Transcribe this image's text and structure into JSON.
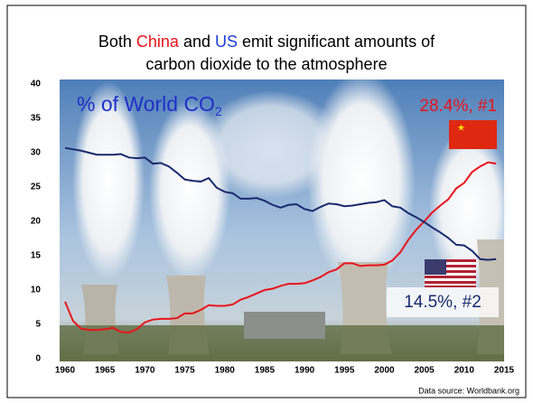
{
  "chart_data": {
    "type": "line",
    "title_lines": [
      [
        {
          "text": "Both ",
          "color": "#000000"
        },
        {
          "text": "China",
          "color": "#e8141b"
        },
        {
          "text": " and ",
          "color": "#000000"
        },
        {
          "text": "US",
          "color": "#1f3fd6"
        },
        {
          "text": " emit significant amounts of",
          "color": "#000000"
        }
      ],
      [
        {
          "text": "carbon dioxide to the atmosphere",
          "color": "#000000"
        }
      ]
    ],
    "annotations": [
      {
        "text": "% of World CO",
        "sub": "2",
        "color": "#1f2fc8"
      },
      {
        "text": "28.4%, #1",
        "color": "#e8141b"
      },
      {
        "text": "14.5%, #2",
        "color": "#1a2a6e"
      }
    ],
    "source": "Data source: Worldbank.org",
    "x": [
      1960,
      1961,
      1962,
      1963,
      1964,
      1965,
      1966,
      1967,
      1968,
      1969,
      1970,
      1971,
      1972,
      1973,
      1974,
      1975,
      1976,
      1977,
      1978,
      1979,
      1980,
      1981,
      1982,
      1983,
      1984,
      1985,
      1986,
      1987,
      1988,
      1989,
      1990,
      1991,
      1992,
      1993,
      1994,
      1995,
      1996,
      1997,
      1998,
      1999,
      2000,
      2001,
      2002,
      2003,
      2004,
      2005,
      2006,
      2007,
      2008,
      2009,
      2010,
      2011,
      2012,
      2013,
      2014
    ],
    "series": [
      {
        "color": "#e8141b",
        "values": [
          8.3,
          5.5,
          4.4,
          4.2,
          4.2,
          4.3,
          4.5,
          3.9,
          3.8,
          4.3,
          5.3,
          5.7,
          5.8,
          5.8,
          5.9,
          6.6,
          6.6,
          7.1,
          7.8,
          7.7,
          7.7,
          7.9,
          8.6,
          9.0,
          9.5,
          10.0,
          10.2,
          10.6,
          10.9,
          10.9,
          11.0,
          11.4,
          11.9,
          12.6,
          13.0,
          13.9,
          13.9,
          13.5,
          13.6,
          13.6,
          13.7,
          14.3,
          15.5,
          17.3,
          18.8,
          20.0,
          21.3,
          22.3,
          23.2,
          24.8,
          25.6,
          27.2,
          28.0,
          28.6,
          28.4
        ]
      },
      {
        "color": "#1a2a6e",
        "values": [
          30.7,
          30.5,
          30.3,
          30.0,
          29.7,
          29.7,
          29.7,
          29.8,
          29.3,
          29.2,
          29.3,
          28.4,
          28.5,
          28.0,
          27.1,
          26.1,
          25.9,
          25.8,
          26.3,
          24.9,
          24.3,
          24.1,
          23.3,
          23.3,
          23.4,
          23.0,
          22.4,
          22.0,
          22.4,
          22.5,
          21.8,
          21.5,
          22.1,
          22.6,
          22.5,
          22.2,
          22.3,
          22.5,
          22.7,
          22.8,
          23.1,
          22.2,
          22.0,
          21.2,
          20.6,
          19.9,
          19.1,
          18.4,
          17.6,
          16.6,
          16.5,
          15.7,
          14.5,
          14.4,
          14.5
        ]
      }
    ],
    "xlim": [
      1960,
      2015
    ],
    "xticks": [
      1960,
      1965,
      1970,
      1975,
      1980,
      1985,
      1990,
      1995,
      2000,
      2005,
      2010,
      2015
    ],
    "ylim": [
      0,
      40
    ],
    "yticks": [
      0,
      5,
      10,
      15,
      20,
      25,
      30,
      35,
      40
    ]
  }
}
